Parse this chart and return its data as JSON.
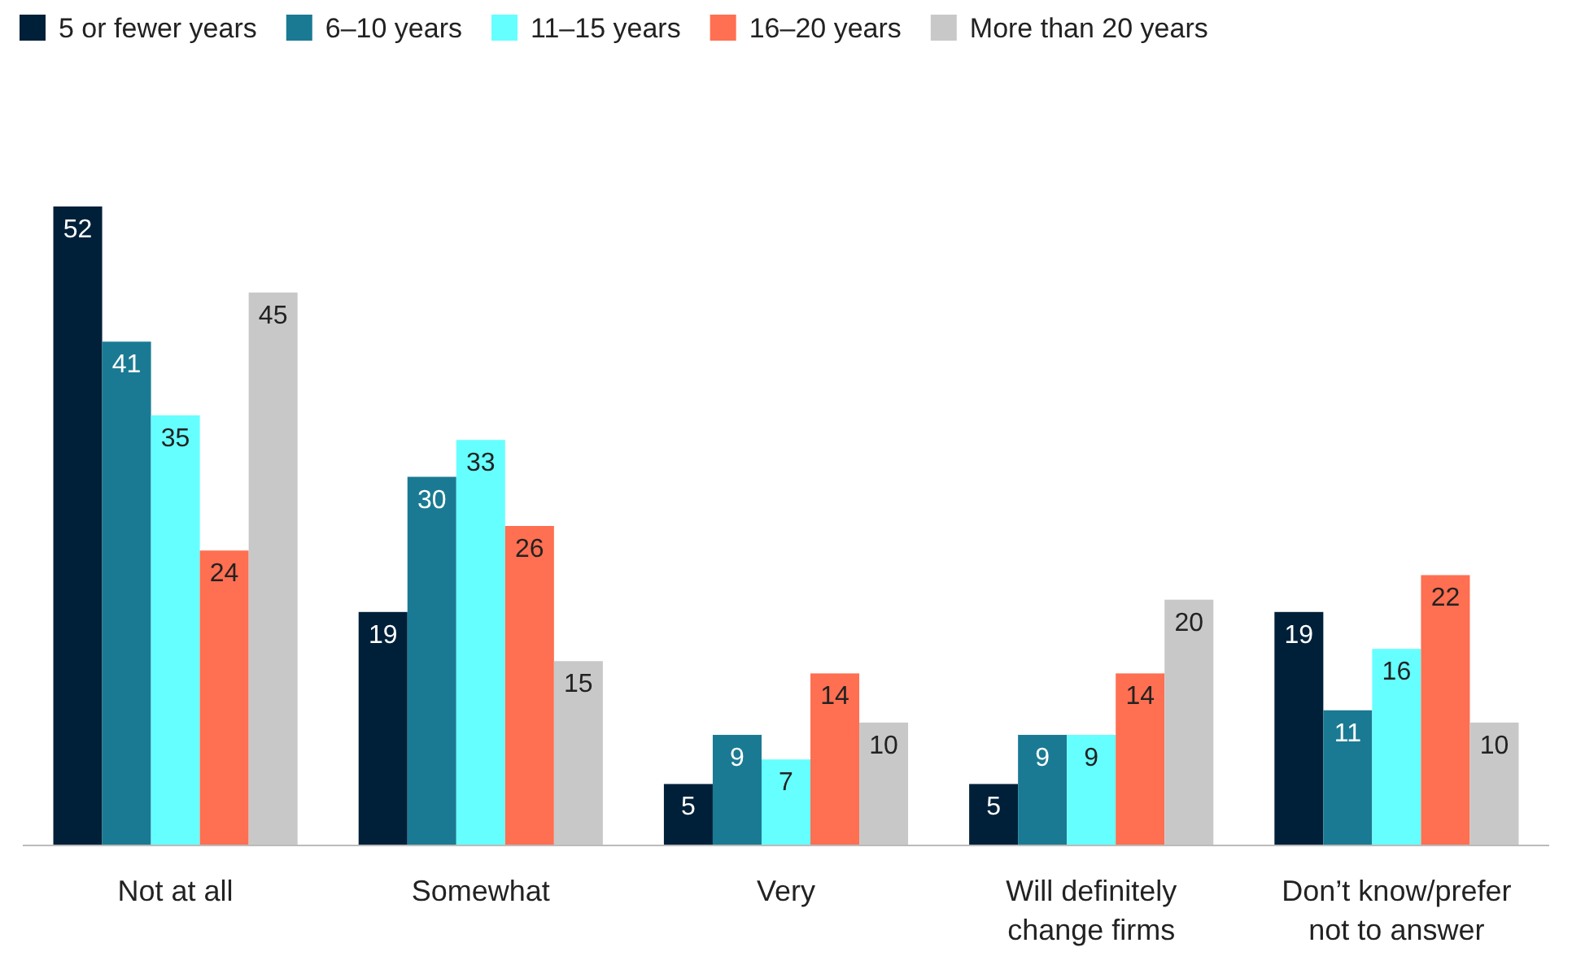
{
  "chart_data": {
    "type": "bar",
    "categories": [
      "Not at all",
      "Somewhat",
      "Very",
      "Will definitely\nchange firms",
      "Don’t know/prefer\nnot to answer"
    ],
    "series": [
      {
        "name": "5 or fewer years",
        "color": "#002039",
        "values": [
          52,
          19,
          5,
          5,
          19
        ]
      },
      {
        "name": "6–10 years",
        "color": "#1a7a93",
        "values": [
          41,
          30,
          9,
          9,
          11
        ]
      },
      {
        "name": "11–15 years",
        "color": "#66ffff",
        "values": [
          35,
          33,
          7,
          9,
          16
        ]
      },
      {
        "name": "16–20 years",
        "color": "#ff6f51",
        "values": [
          24,
          26,
          14,
          14,
          22
        ]
      },
      {
        "name": "More than 20 years",
        "color": "#c8c8c8",
        "values": [
          45,
          15,
          10,
          20,
          10
        ]
      }
    ],
    "data_labels": true,
    "legend": "top left"
  }
}
